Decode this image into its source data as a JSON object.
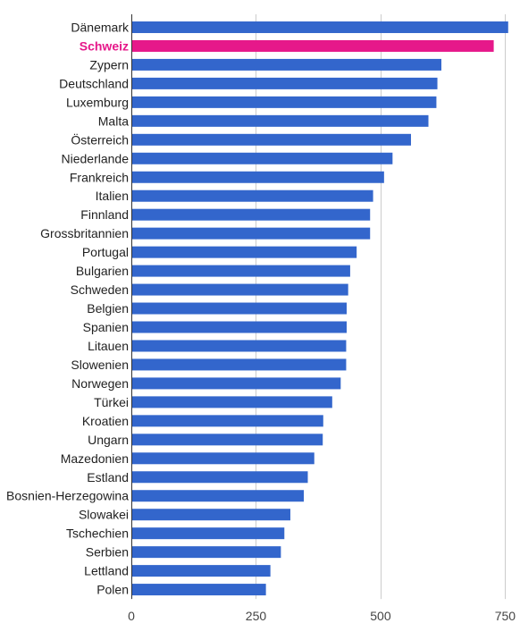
{
  "chart_data": {
    "type": "bar",
    "orientation": "horizontal",
    "categories": [
      "Dänemark",
      "Schweiz",
      "Zypern",
      "Deutschland",
      "Luxemburg",
      "Malta",
      "Österreich",
      "Niederlande",
      "Frankreich",
      "Italien",
      "Finnland",
      "Grossbritannien",
      "Portugal",
      "Bulgarien",
      "Schweden",
      "Belgien",
      "Spanien",
      "Litauen",
      "Slowenien",
      "Norwegen",
      "Türkei",
      "Kroatien",
      "Ungarn",
      "Mazedonien",
      "Estland",
      "Bosnien-Herzegowina",
      "Slowakei",
      "Tschechien",
      "Serbien",
      "Lettland",
      "Polen"
    ],
    "values": [
      756,
      727,
      622,
      614,
      612,
      596,
      561,
      524,
      507,
      485,
      479,
      479,
      452,
      439,
      435,
      432,
      432,
      431,
      431,
      420,
      403,
      385,
      384,
      367,
      354,
      346,
      319,
      307,
      300,
      279,
      270
    ],
    "highlight": "Schweiz",
    "xlim": [
      0,
      760
    ],
    "xticks": [
      0,
      250,
      500,
      750
    ],
    "grid": true,
    "title": "",
    "xlabel": "",
    "ylabel": "",
    "colors": {
      "bar": "#3366cc",
      "highlight": "#e6188a",
      "grid": "#cccccc",
      "axis": "#333333",
      "label": "#222222"
    }
  }
}
